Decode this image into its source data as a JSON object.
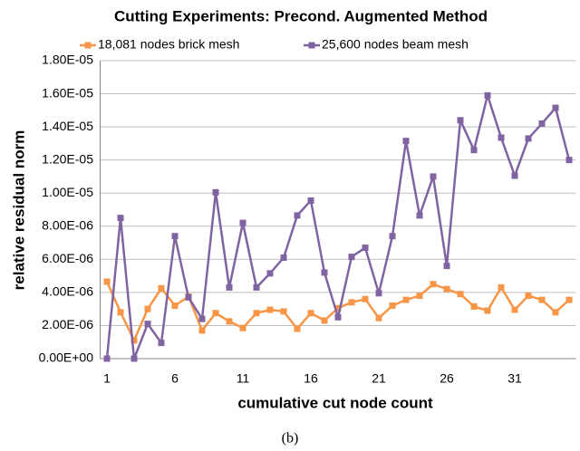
{
  "chart_data": {
    "type": "line",
    "title": "Cutting Experiments: Precond. Augmented Method",
    "xlabel": "cumulative cut node count",
    "ylabel": "relative residual norm",
    "categories": [
      1,
      null,
      null,
      null,
      null,
      6,
      null,
      null,
      null,
      null,
      11,
      null,
      null,
      null,
      null,
      16,
      null,
      null,
      null,
      null,
      21,
      null,
      null,
      null,
      null,
      26,
      null,
      null,
      null,
      null,
      31,
      null,
      null,
      null,
      null
    ],
    "series": [
      {
        "name": "18,081 nodes brick mesh",
        "color": "#f79646",
        "values": [
          4.65e-06,
          2.8e-06,
          1.1e-06,
          3e-06,
          4.25e-06,
          3.2e-06,
          3.75e-06,
          1.7e-06,
          2.75e-06,
          2.25e-06,
          1.85e-06,
          2.75e-06,
          2.95e-06,
          2.85e-06,
          1.8e-06,
          2.75e-06,
          2.3e-06,
          3.05e-06,
          3.4e-06,
          3.6e-06,
          2.45e-06,
          3.2e-06,
          3.55e-06,
          3.8e-06,
          4.5e-06,
          4.2e-06,
          3.9e-06,
          3.15e-06,
          2.9e-06,
          4.3e-06,
          2.95e-06,
          3.8e-06,
          3.55e-06,
          2.8e-06,
          3.55e-06
        ]
      },
      {
        "name": "25,600 nodes beam mesh",
        "color": "#8064a2",
        "values": [
          0,
          8.5e-06,
          0,
          2.1e-06,
          9.5e-07,
          7.4e-06,
          3.7e-06,
          2.4e-06,
          1.005e-05,
          4.3e-06,
          8.2e-06,
          4.3e-06,
          5.15e-06,
          6.1e-06,
          8.65e-06,
          9.55e-06,
          5.2e-06,
          2.5e-06,
          6.15e-06,
          6.7e-06,
          3.95e-06,
          7.4e-06,
          1.315e-05,
          8.65e-06,
          1.1e-05,
          5.6e-06,
          1.44e-05,
          1.26e-05,
          1.59e-05,
          1.335e-05,
          1.105e-05,
          1.33e-05,
          1.42e-05,
          1.515e-05,
          1.2e-05
        ]
      }
    ],
    "ylim": [
      0,
      1.8e-05
    ],
    "yticks": [
      {
        "value": 0,
        "label": "0.00E+00"
      },
      {
        "value": 2e-06,
        "label": "2.00E-06"
      },
      {
        "value": 4e-06,
        "label": "4.00E-06"
      },
      {
        "value": 6e-06,
        "label": "6.00E-06"
      },
      {
        "value": 8e-06,
        "label": "8.00E-06"
      },
      {
        "value": 1e-05,
        "label": "1.00E-05"
      },
      {
        "value": 1.2e-05,
        "label": "1.20E-05"
      },
      {
        "value": 1.4e-05,
        "label": "1.40E-05"
      },
      {
        "value": 1.6e-05,
        "label": "1.60E-05"
      },
      {
        "value": 1.8e-05,
        "label": "1.80E-05"
      }
    ],
    "grid": true,
    "legend": "top"
  },
  "caption": "(b)"
}
